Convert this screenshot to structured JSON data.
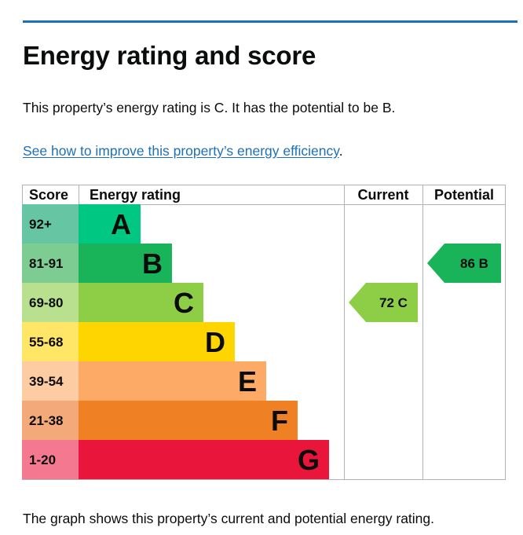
{
  "page": {
    "heading": "Energy rating and score",
    "summary": "This property’s energy rating is C. It has the potential to be B.",
    "link_text": "See how to improve this property’s energy efficiency",
    "link_suffix": ".",
    "caption": "The graph shows this property’s current and potential energy rating."
  },
  "colors": {
    "accent_rule": "#1d70b8",
    "link": "#1d70b8",
    "grid": "#b1b4b6"
  },
  "chart_data": {
    "type": "bar",
    "title": "",
    "headers": {
      "score": "Score",
      "rating": "Energy rating",
      "current": "Current",
      "potential": "Potential"
    },
    "bands": [
      {
        "letter": "A",
        "score_range": "92+",
        "color": "#008054",
        "score_bg": "#66c5a2",
        "bar_color": "#00c781"
      },
      {
        "letter": "B",
        "score_range": "81-91",
        "color": "#19b459",
        "score_bg": "#7dcc92",
        "bar_color": "#19b459"
      },
      {
        "letter": "C",
        "score_range": "69-80",
        "color": "#8dce46",
        "score_bg": "#b9e08e",
        "bar_color": "#8dce46"
      },
      {
        "letter": "D",
        "score_range": "55-68",
        "color": "#ffd500",
        "score_bg": "#ffe666",
        "bar_color": "#ffd500"
      },
      {
        "letter": "E",
        "score_range": "39-54",
        "color": "#fcaa65",
        "score_bg": "#fdcca3",
        "bar_color": "#fcaa65"
      },
      {
        "letter": "F",
        "score_range": "21-38",
        "color": "#ef8023",
        "score_bg": "#f4a97b",
        "bar_color": "#ef8023"
      },
      {
        "letter": "G",
        "score_range": "1-20",
        "color": "#e9153b",
        "score_bg": "#f4788f",
        "bar_color": "#e9153b"
      }
    ],
    "current": {
      "score": 72,
      "letter": "C",
      "label": "72  C",
      "color": "#8dce46"
    },
    "potential": {
      "score": 86,
      "letter": "B",
      "label": "86  B",
      "color": "#19b459"
    }
  }
}
